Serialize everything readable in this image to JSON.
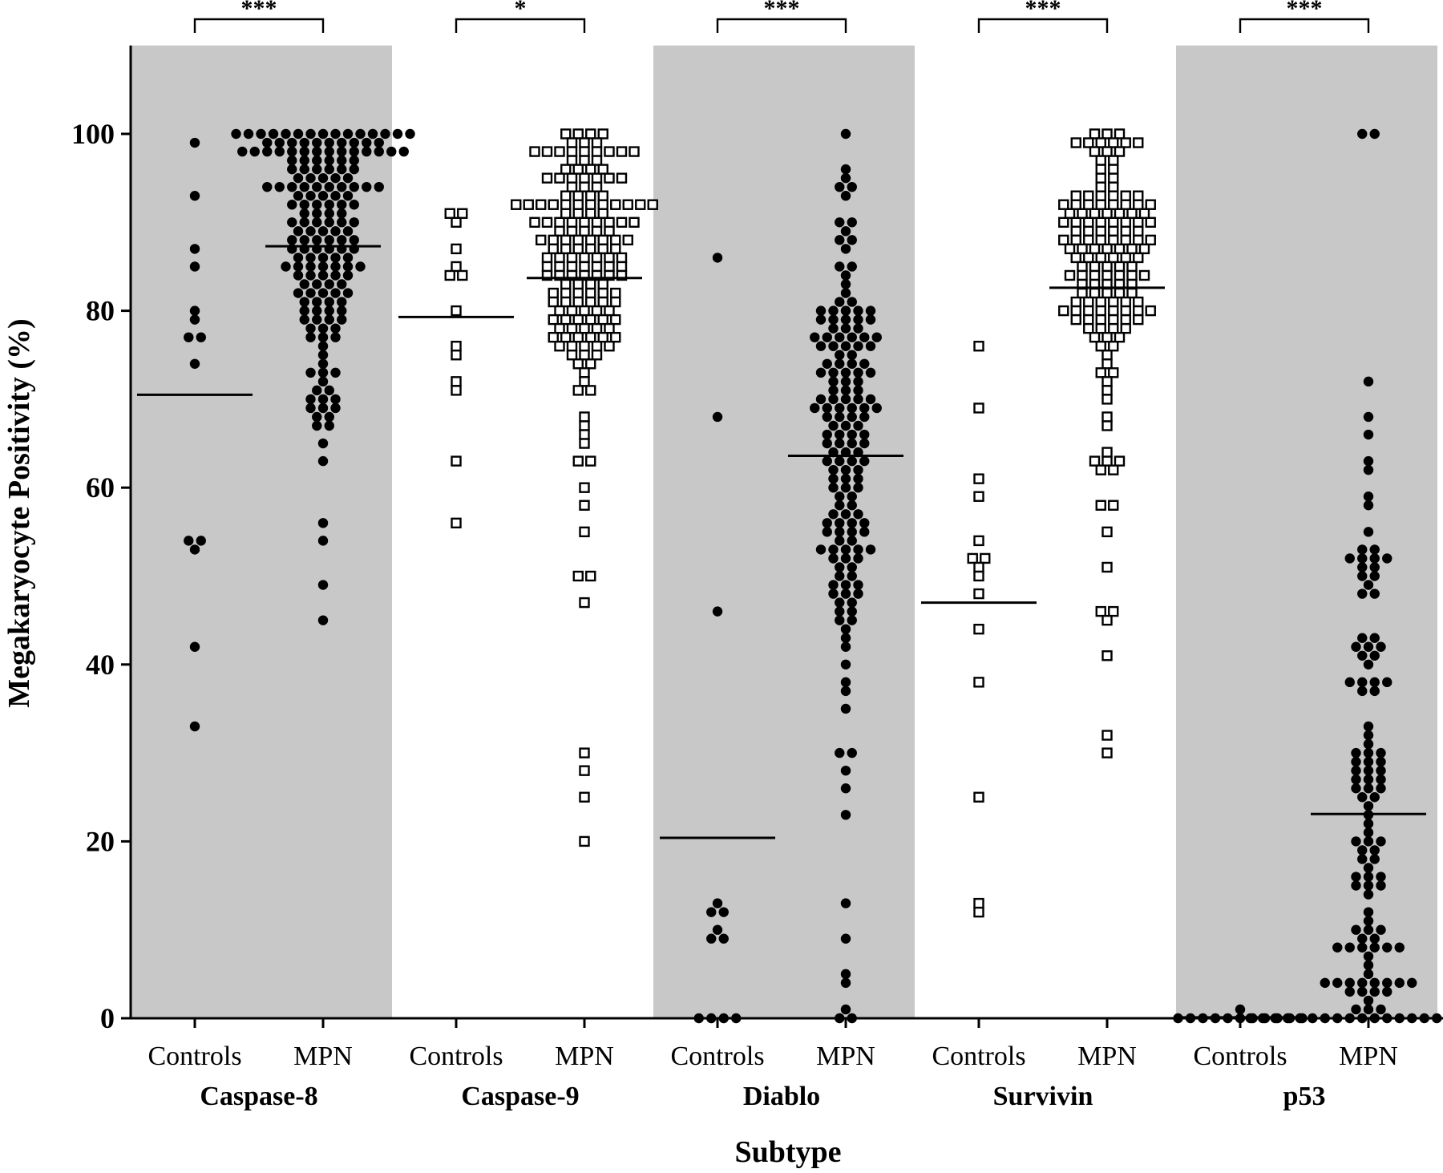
{
  "chart_data": {
    "type": "scatter",
    "subtype": "dot-plot with mean lines",
    "ylabel": "Megakaryocyte  Positivity  (%)",
    "xlabel": "Subtype",
    "ylim": [
      0,
      110
    ],
    "yticks": [
      0,
      20,
      40,
      60,
      80,
      100
    ],
    "grid": false,
    "colors": {
      "shade": "#c8c8c8",
      "marker": "#000000",
      "background": "#ffffff"
    },
    "groups": [
      {
        "name": "Caspase-8",
        "shaded": true,
        "marker": "filled-circle",
        "significance": "***",
        "series": [
          {
            "label": "Controls",
            "mean": 70.5,
            "values": [
              99,
              93,
              87,
              85,
              80,
              79,
              77,
              77,
              74,
              54,
              54,
              53,
              42,
              33
            ]
          },
          {
            "label": "MPN",
            "mean": 87.3,
            "values": [
              100,
              100,
              100,
              100,
              100,
              100,
              100,
              100,
              100,
              100,
              100,
              100,
              100,
              100,
              100,
              99,
              99,
              99,
              99,
              99,
              99,
              99,
              99,
              99,
              99,
              98,
              98,
              98,
              98,
              98,
              98,
              98,
              98,
              98,
              98,
              98,
              98,
              98,
              98,
              97,
              97,
              97,
              97,
              97,
              97,
              96,
              96,
              96,
              96,
              96,
              96,
              95,
              95,
              95,
              95,
              95,
              94,
              94,
              94,
              94,
              94,
              94,
              94,
              94,
              94,
              94,
              93,
              93,
              93,
              93,
              93,
              92,
              92,
              92,
              92,
              92,
              92,
              91,
              91,
              91,
              91,
              90,
              90,
              90,
              90,
              90,
              90,
              89,
              89,
              89,
              89,
              89,
              88,
              88,
              88,
              88,
              88,
              88,
              87,
              87,
              87,
              87,
              87,
              87,
              86,
              86,
              86,
              86,
              86,
              85,
              85,
              85,
              85,
              85,
              85,
              85,
              84,
              84,
              84,
              84,
              84,
              83,
              83,
              83,
              83,
              82,
              82,
              82,
              82,
              82,
              81,
              81,
              81,
              81,
              80,
              80,
              80,
              80,
              79,
              79,
              79,
              79,
              78,
              78,
              78,
              77,
              77,
              77,
              76,
              75,
              74,
              73,
              73,
              73,
              72,
              71,
              71,
              70,
              70,
              70,
              69,
              69,
              69,
              68,
              68,
              67,
              67,
              65,
              63,
              56,
              54,
              49,
              45
            ]
          }
        ]
      },
      {
        "name": "Caspase-9",
        "shaded": false,
        "marker": "open-square",
        "significance": "*",
        "series": [
          {
            "label": "Controls",
            "mean": 79.3,
            "values": [
              91,
              91,
              90,
              87,
              85,
              84,
              84,
              80,
              76,
              75,
              72,
              71,
              63,
              56
            ]
          },
          {
            "label": "MPN",
            "mean": 83.7,
            "values": [
              100,
              100,
              100,
              100,
              99,
              99,
              99,
              98,
              98,
              98,
              98,
              98,
              98,
              98,
              98,
              98,
              97,
              97,
              97,
              96,
              96,
              96,
              96,
              95,
              95,
              95,
              95,
              95,
              95,
              95,
              94,
              94,
              94,
              93,
              93,
              93,
              93,
              92,
              92,
              92,
              92,
              92,
              92,
              92,
              92,
              92,
              92,
              92,
              92,
              91,
              91,
              91,
              91,
              90,
              90,
              90,
              90,
              90,
              90,
              90,
              90,
              90,
              89,
              89,
              89,
              89,
              89,
              88,
              88,
              88,
              88,
              88,
              88,
              88,
              88,
              87,
              87,
              87,
              87,
              87,
              87,
              86,
              86,
              86,
              86,
              86,
              86,
              86,
              85,
              85,
              85,
              85,
              85,
              85,
              85,
              84,
              84,
              84,
              84,
              84,
              84,
              84,
              83,
              83,
              83,
              83,
              82,
              82,
              82,
              82,
              82,
              82,
              81,
              81,
              81,
              81,
              81,
              81,
              80,
              80,
              80,
              80,
              80,
              79,
              79,
              79,
              79,
              79,
              79,
              78,
              78,
              78,
              78,
              78,
              77,
              77,
              77,
              77,
              77,
              77,
              76,
              76,
              76,
              76,
              76,
              75,
              75,
              75,
              74,
              74,
              73,
              72,
              71,
              71,
              68,
              67,
              66,
              65,
              63,
              63,
              60,
              58,
              55,
              50,
              50,
              47,
              30,
              28,
              25,
              20
            ]
          }
        ]
      },
      {
        "name": "Diablo",
        "shaded": true,
        "marker": "filled-circle",
        "significance": "***",
        "series": [
          {
            "label": "Controls",
            "mean": 20.4,
            "values": [
              86,
              68,
              46,
              13,
              12,
              12,
              10,
              9,
              9,
              0,
              0,
              0,
              0
            ]
          },
          {
            "label": "MPN",
            "mean": 63.6,
            "values": [
              100,
              96,
              95,
              94,
              94,
              93,
              90,
              90,
              89,
              88,
              88,
              87,
              85,
              85,
              84,
              83,
              82,
              81,
              81,
              80,
              80,
              80,
              80,
              80,
              79,
              79,
              79,
              79,
              79,
              78,
              78,
              78,
              77,
              77,
              77,
              77,
              77,
              77,
              76,
              76,
              76,
              76,
              76,
              75,
              75,
              74,
              74,
              74,
              74,
              73,
              73,
              73,
              73,
              73,
              72,
              72,
              72,
              71,
              71,
              71,
              70,
              70,
              70,
              70,
              70,
              69,
              69,
              69,
              69,
              69,
              69,
              68,
              68,
              68,
              68,
              67,
              67,
              67,
              66,
              66,
              66,
              66,
              65,
              65,
              65,
              65,
              64,
              64,
              64,
              63,
              63,
              63,
              63,
              62,
              62,
              62,
              61,
              61,
              61,
              60,
              60,
              60,
              59,
              59,
              58,
              58,
              57,
              57,
              57,
              56,
              56,
              56,
              56,
              55,
              55,
              55,
              55,
              54,
              54,
              53,
              53,
              53,
              53,
              53,
              52,
              52,
              52,
              51,
              51,
              50,
              50,
              49,
              49,
              49,
              48,
              48,
              48,
              47,
              47,
              46,
              46,
              45,
              45,
              44,
              43,
              42,
              40,
              38,
              37,
              35,
              30,
              30,
              28,
              26,
              23,
              13,
              9,
              5,
              4,
              1,
              0,
              0
            ]
          }
        ]
      },
      {
        "name": "Survivin",
        "shaded": false,
        "marker": "open-square",
        "significance": "***",
        "series": [
          {
            "label": "Controls",
            "mean": 47.0,
            "values": [
              76,
              69,
              61,
              59,
              54,
              52,
              52,
              51,
              50,
              48,
              44,
              38,
              25,
              13,
              12
            ]
          },
          {
            "label": "MPN",
            "mean": 82.6,
            "values": [
              100,
              100,
              100,
              99,
              99,
              99,
              99,
              99,
              99,
              98,
              98,
              98,
              97,
              97,
              96,
              96,
              95,
              95,
              94,
              94,
              93,
              93,
              93,
              93,
              93,
              93,
              92,
              92,
              92,
              92,
              92,
              92,
              92,
              92,
              91,
              91,
              91,
              91,
              91,
              91,
              91,
              90,
              90,
              90,
              90,
              90,
              90,
              90,
              90,
              89,
              89,
              89,
              89,
              89,
              89,
              88,
              88,
              88,
              88,
              88,
              88,
              88,
              88,
              87,
              87,
              87,
              87,
              87,
              87,
              87,
              86,
              86,
              86,
              86,
              86,
              86,
              85,
              85,
              85,
              85,
              85,
              84,
              84,
              84,
              84,
              84,
              84,
              84,
              83,
              83,
              83,
              83,
              83,
              82,
              82,
              82,
              82,
              82,
              81,
              81,
              81,
              81,
              81,
              81,
              80,
              80,
              80,
              80,
              80,
              80,
              80,
              80,
              79,
              79,
              79,
              79,
              79,
              79,
              78,
              78,
              78,
              78,
              77,
              77,
              77,
              76,
              76,
              75,
              74,
              73,
              73,
              72,
              71,
              70,
              68,
              67,
              64,
              63,
              63,
              63,
              62,
              62,
              58,
              58,
              55,
              51,
              46,
              46,
              45,
              41,
              32,
              30
            ]
          }
        ]
      },
      {
        "name": "p53",
        "shaded": true,
        "marker": "filled-circle",
        "significance": "***",
        "series": [
          {
            "label": "Controls",
            "mean": 0.1,
            "values": [
              1,
              0,
              0,
              0,
              0,
              0,
              0,
              0,
              0,
              0,
              0,
              0
            ]
          },
          {
            "label": "MPN",
            "mean": 23.1,
            "values": [
              100,
              100,
              72,
              68,
              66,
              63,
              62,
              59,
              58,
              55,
              53,
              53,
              52,
              52,
              52,
              52,
              51,
              51,
              50,
              50,
              49,
              48,
              48,
              43,
              43,
              42,
              42,
              42,
              41,
              41,
              40,
              38,
              38,
              38,
              38,
              37,
              37,
              33,
              32,
              31,
              30,
              30,
              30,
              29,
              29,
              29,
              28,
              28,
              28,
              27,
              27,
              27,
              26,
              26,
              26,
              25,
              25,
              24,
              23,
              22,
              21,
              20,
              20,
              20,
              19,
              19,
              18,
              18,
              17,
              16,
              16,
              16,
              15,
              15,
              15,
              14,
              12,
              11,
              10,
              10,
              10,
              9,
              9,
              8,
              8,
              8,
              8,
              8,
              8,
              7,
              6,
              5,
              4,
              4,
              4,
              4,
              4,
              4,
              4,
              4,
              3,
              3,
              3,
              3,
              2,
              1,
              1,
              1,
              0,
              0,
              0,
              0,
              0,
              0,
              0,
              0,
              0,
              0,
              0,
              0,
              0,
              0,
              0,
              0,
              0,
              0,
              0,
              0
            ]
          }
        ]
      }
    ]
  }
}
